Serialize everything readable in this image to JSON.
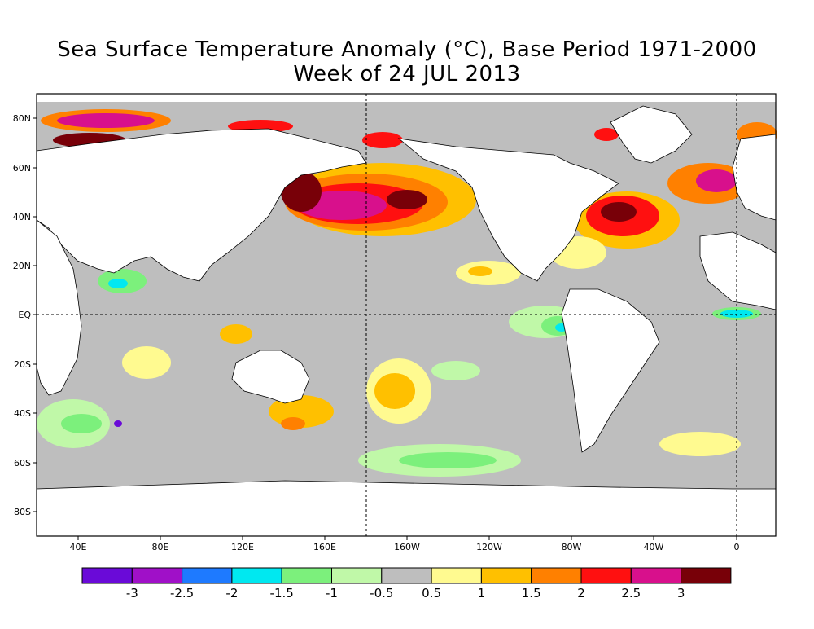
{
  "title": "Sea Surface Temperature Anomaly (°C), Base Period 1971-2000",
  "subtitle": "Week of 24 JUL 2013",
  "lat_labels": [
    "80N",
    "60N",
    "40N",
    "20N",
    "EQ",
    "20S",
    "40S",
    "60S",
    "80S"
  ],
  "lon_labels": [
    "40E",
    "80E",
    "120E",
    "160E",
    "160W",
    "120W",
    "80W",
    "40W",
    "0"
  ],
  "colorbar": {
    "colors": [
      "#6a0ad8",
      "#a010c8",
      "#1e7aff",
      "#00e8f0",
      "#7cf07c",
      "#c0f8a8",
      "#bebebe",
      "#fffa90",
      "#ffc000",
      "#ff8000",
      "#ff1010",
      "#d8108c",
      "#780008"
    ],
    "labels": [
      "-3",
      "-2.5",
      "-2",
      "-1.5",
      "-1",
      "-0.5",
      "0.5",
      "1",
      "1.5",
      "2",
      "2.5",
      "3"
    ]
  },
  "colors": {
    "ocean_neutral": "#bebebe",
    "land": "#ffffff",
    "grid": "#000000"
  }
}
